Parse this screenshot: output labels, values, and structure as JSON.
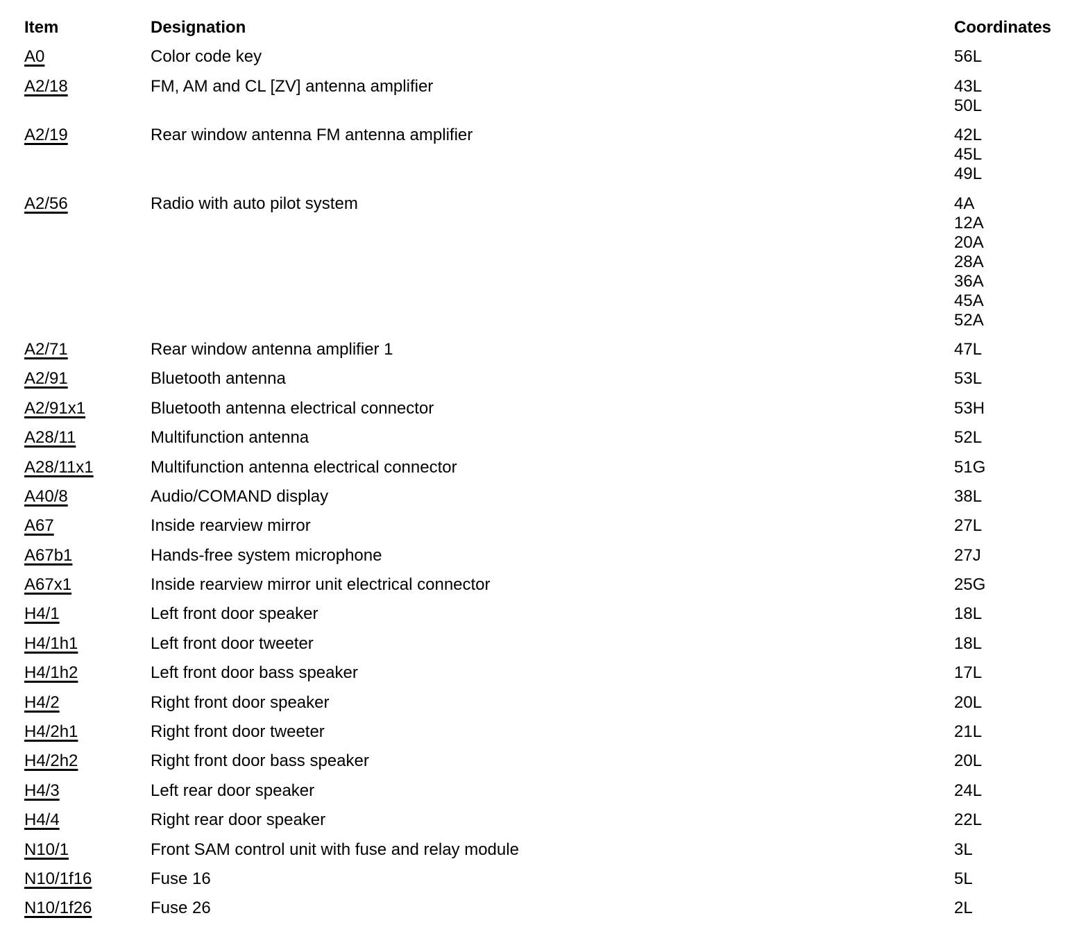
{
  "colors": {
    "text": "#000000",
    "background": "#ffffff"
  },
  "table": {
    "headers": {
      "item": "Item",
      "designation": "Designation",
      "coordinates": "Coordinates"
    },
    "rows": [
      {
        "item": "A0",
        "designation": "Color code key",
        "coordinates": [
          "56L"
        ]
      },
      {
        "item": "A2/18",
        "designation": "FM, AM and CL [ZV] antenna amplifier",
        "coordinates": [
          "43L",
          "50L"
        ]
      },
      {
        "item": "A2/19",
        "designation": "Rear window antenna FM antenna amplifier",
        "coordinates": [
          "42L",
          "45L",
          "49L"
        ]
      },
      {
        "item": "A2/56",
        "designation": "Radio with auto pilot system",
        "coordinates": [
          "4A",
          "12A",
          "20A",
          "28A",
          "36A",
          "45A",
          "52A"
        ]
      },
      {
        "item": "A2/71",
        "designation": "Rear window antenna amplifier 1",
        "coordinates": [
          "47L"
        ]
      },
      {
        "item": "A2/91",
        "designation": "Bluetooth antenna",
        "coordinates": [
          "53L"
        ]
      },
      {
        "item": "A2/91x1",
        "designation": "Bluetooth antenna electrical connector",
        "coordinates": [
          "53H"
        ]
      },
      {
        "item": "A28/11",
        "designation": "Multifunction antenna",
        "coordinates": [
          "52L"
        ]
      },
      {
        "item": "A28/11x1",
        "designation": "Multifunction antenna electrical connector",
        "coordinates": [
          "51G"
        ]
      },
      {
        "item": "A40/8",
        "designation": "Audio/COMAND display",
        "coordinates": [
          "38L"
        ]
      },
      {
        "item": "A67",
        "designation": "Inside rearview mirror",
        "coordinates": [
          "27L"
        ]
      },
      {
        "item": "A67b1",
        "designation": "Hands-free system microphone",
        "coordinates": [
          "27J"
        ]
      },
      {
        "item": "A67x1",
        "designation": "Inside rearview mirror unit electrical connector",
        "coordinates": [
          "25G"
        ]
      },
      {
        "item": "H4/1",
        "designation": "Left front door speaker",
        "coordinates": [
          "18L"
        ]
      },
      {
        "item": "H4/1h1",
        "designation": "Left front door tweeter",
        "coordinates": [
          "18L"
        ]
      },
      {
        "item": "H4/1h2",
        "designation": "Left front door bass speaker",
        "coordinates": [
          "17L"
        ]
      },
      {
        "item": "H4/2",
        "designation": "Right front door speaker",
        "coordinates": [
          "20L"
        ]
      },
      {
        "item": "H4/2h1",
        "designation": "Right front door tweeter",
        "coordinates": [
          "21L"
        ]
      },
      {
        "item": "H4/2h2",
        "designation": "Right front door bass speaker",
        "coordinates": [
          "20L"
        ]
      },
      {
        "item": "H4/3",
        "designation": "Left rear door speaker",
        "coordinates": [
          "24L"
        ]
      },
      {
        "item": "H4/4",
        "designation": "Right rear door speaker",
        "coordinates": [
          "22L"
        ]
      },
      {
        "item": "N10/1",
        "designation": "Front SAM control unit with fuse and relay module",
        "coordinates": [
          "3L"
        ]
      },
      {
        "item": "N10/1f16",
        "designation": "Fuse 16",
        "coordinates": [
          "5L"
        ]
      },
      {
        "item": "N10/1f26",
        "designation": "Fuse 26",
        "coordinates": [
          "2L"
        ]
      }
    ]
  }
}
